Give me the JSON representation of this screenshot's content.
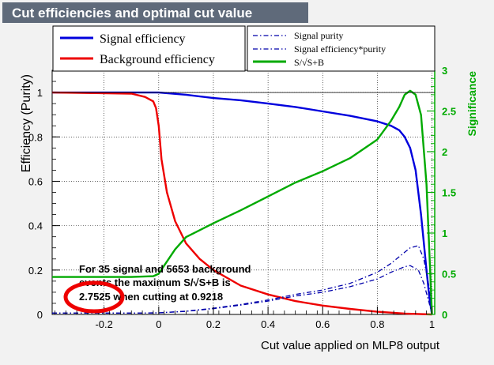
{
  "chart_data": {
    "type": "line",
    "title": "Cut efficiencies and optimal cut value",
    "xlabel": "Cut value applied on MLP8 output",
    "ylabel": "Efficiency (Purity)",
    "y2label": "Significance",
    "xlim": [
      -0.39,
      1.01
    ],
    "ylim": [
      0,
      1.1
    ],
    "y2lim": [
      0,
      3.0
    ],
    "grid": true,
    "x_ticks": [
      -0.2,
      0,
      0.2,
      0.4,
      0.6,
      0.8,
      1
    ],
    "x_tick_labels": [
      "-0.2",
      "0",
      "0.2",
      "0.4",
      "0.6",
      "0.8",
      "1"
    ],
    "y_ticks": [
      0,
      0.2,
      0.4,
      0.6,
      0.8,
      1
    ],
    "y_tick_labels": [
      "0",
      "0.2",
      "0.4",
      "0.6",
      "0.8",
      "1"
    ],
    "y2_ticks": [
      0,
      0.5,
      1,
      1.5,
      2,
      2.5,
      3
    ],
    "y2_tick_labels": [
      "0",
      "0.5",
      "1",
      "1.5",
      "2",
      "2.5",
      "3"
    ],
    "legend": {
      "placement": "top",
      "entries_left": [
        "Signal efficiency",
        "Background efficiency"
      ],
      "entries_right": [
        "Signal purity",
        "Signal efficiency*purity",
        "S/√S+B"
      ]
    },
    "annotation": {
      "line1": "For 35 signal and 5653 background",
      "line2": "events the maximum S/√S+B is",
      "line3": "2.7525 when cutting at 0.9218"
    },
    "series": [
      {
        "name": "Signal efficiency",
        "color": "#0000dd",
        "axis": "left",
        "style": "solid",
        "x": [
          -0.39,
          -0.2,
          0,
          0.1,
          0.2,
          0.3,
          0.4,
          0.5,
          0.6,
          0.7,
          0.8,
          0.85,
          0.88,
          0.9,
          0.92,
          0.94,
          0.96,
          0.98,
          0.99,
          1.0
        ],
        "y": [
          1.0,
          1.0,
          1.0,
          0.99,
          0.975,
          0.965,
          0.95,
          0.935,
          0.915,
          0.895,
          0.87,
          0.85,
          0.83,
          0.8,
          0.75,
          0.65,
          0.45,
          0.2,
          0.08,
          0.0
        ]
      },
      {
        "name": "Background efficiency",
        "color": "#ee0000",
        "axis": "left",
        "style": "solid",
        "x": [
          -0.39,
          -0.1,
          -0.05,
          -0.02,
          -0.01,
          0.0,
          0.01,
          0.03,
          0.06,
          0.1,
          0.15,
          0.2,
          0.3,
          0.4,
          0.5,
          0.6,
          0.7,
          0.8,
          0.9,
          1.0
        ],
        "y": [
          1.0,
          0.995,
          0.98,
          0.96,
          0.93,
          0.85,
          0.7,
          0.55,
          0.42,
          0.32,
          0.25,
          0.2,
          0.13,
          0.09,
          0.06,
          0.04,
          0.025,
          0.012,
          0.004,
          0.0
        ]
      },
      {
        "name": "Signal purity",
        "color": "#0000aa",
        "axis": "left",
        "style": "dashdot",
        "x": [
          -0.39,
          -0.1,
          0.0,
          0.1,
          0.2,
          0.3,
          0.4,
          0.5,
          0.6,
          0.7,
          0.8,
          0.85,
          0.9,
          0.92,
          0.95,
          0.97,
          0.99,
          1.0
        ],
        "y": [
          0.006,
          0.006,
          0.007,
          0.015,
          0.028,
          0.045,
          0.065,
          0.09,
          0.11,
          0.14,
          0.19,
          0.23,
          0.28,
          0.3,
          0.31,
          0.25,
          0.12,
          0.0
        ]
      },
      {
        "name": "Signal efficiency*purity",
        "color": "#0000aa",
        "axis": "left",
        "style": "dashdot",
        "x": [
          -0.39,
          -0.1,
          0.0,
          0.1,
          0.2,
          0.3,
          0.4,
          0.5,
          0.6,
          0.7,
          0.8,
          0.85,
          0.9,
          0.92,
          0.95,
          0.97,
          0.99,
          1.0
        ],
        "y": [
          0.006,
          0.006,
          0.007,
          0.014,
          0.026,
          0.042,
          0.06,
          0.083,
          0.1,
          0.125,
          0.16,
          0.19,
          0.215,
          0.22,
          0.2,
          0.14,
          0.05,
          0.0
        ]
      },
      {
        "name": "S/√S+B",
        "color": "#00aa00",
        "axis": "right",
        "style": "solid",
        "x": [
          -0.39,
          -0.1,
          -0.02,
          0.0,
          0.02,
          0.06,
          0.1,
          0.2,
          0.3,
          0.4,
          0.5,
          0.6,
          0.7,
          0.8,
          0.85,
          0.88,
          0.9,
          0.92,
          0.94,
          0.96,
          0.98,
          0.99,
          1.0
        ],
        "y": [
          0.46,
          0.46,
          0.47,
          0.5,
          0.6,
          0.8,
          0.95,
          1.12,
          1.28,
          1.45,
          1.62,
          1.76,
          1.92,
          2.15,
          2.38,
          2.55,
          2.7,
          2.75,
          2.7,
          2.45,
          1.6,
          0.8,
          0.0
        ]
      }
    ]
  }
}
